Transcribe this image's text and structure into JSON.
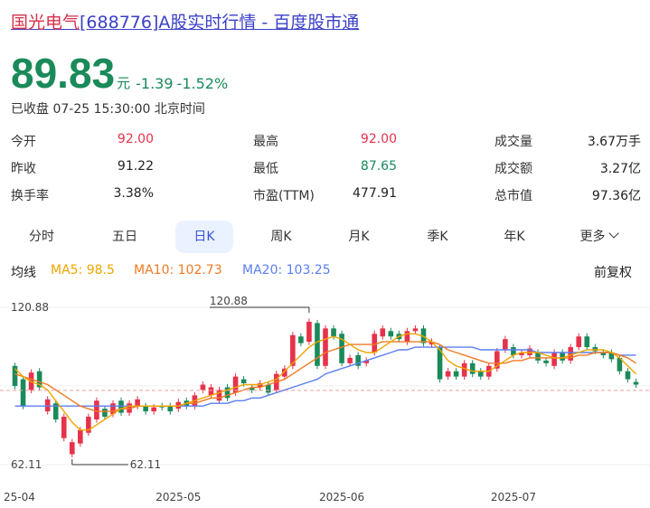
{
  "title": {
    "highlight": "国光电气",
    "rest": "[688776]A股实时行情 - 百度股市通"
  },
  "quote": {
    "price": "89.83",
    "unit": "元",
    "change": "-1.39",
    "change_pct": "-1.52%"
  },
  "status": "已收盘 07-25 15:30:00 北京时间",
  "colors": {
    "up": "#e6324b",
    "down": "#1a8a5a",
    "ma5": "#f0a500",
    "ma10": "#f07a22",
    "ma20": "#5b7ef0",
    "link": "#3a3fc7"
  },
  "stats": [
    {
      "label": "今开",
      "value": "92.00",
      "color": "up"
    },
    {
      "label": "最高",
      "value": "92.00",
      "color": "up"
    },
    {
      "label": "成交量",
      "value": "3.67万手",
      "color": "neutral"
    },
    {
      "label": "昨收",
      "value": "91.22",
      "color": "neutral"
    },
    {
      "label": "最低",
      "value": "87.65",
      "color": "down"
    },
    {
      "label": "成交额",
      "value": "3.27亿",
      "color": "neutral"
    },
    {
      "label": "换手率",
      "value": "3.38%",
      "color": "neutral"
    },
    {
      "label": "市盈(TTM)",
      "value": "477.91",
      "color": "neutral"
    },
    {
      "label": "总市值",
      "value": "97.36亿",
      "color": "neutral"
    }
  ],
  "tabs": [
    "分时",
    "五日",
    "日K",
    "周K",
    "月K",
    "季K",
    "年K",
    "更多"
  ],
  "active_tab": "日K",
  "legend": {
    "title": "均线",
    "ma5": "MA5: 98.5",
    "ma10": "MA10: 102.73",
    "ma20": "MA20: 103.25",
    "adjust": "前复权"
  },
  "chart_data": {
    "type": "candlestick",
    "y_top_label": "120.88",
    "y_bottom_label": "62.11",
    "ylim": [
      62.11,
      120.88
    ],
    "max_label": "120.88",
    "min_label": "62.11",
    "current_price": 89.83,
    "x_ticks": [
      "25-04",
      "2025-05",
      "2025-06",
      "2025-07"
    ],
    "x_tick_positions": [
      0,
      20,
      40,
      61
    ],
    "candles": [
      [
        99,
        91.5
      ],
      [
        94,
        84
      ],
      [
        90,
        96.5
      ],
      [
        97,
        91
      ],
      [
        82,
        86.5
      ],
      [
        85,
        79
      ],
      [
        72,
        80
      ],
      [
        66,
        70.5
      ],
      [
        70,
        75
      ],
      [
        74,
        80
      ],
      [
        79,
        86
      ],
      [
        83,
        80
      ],
      [
        81,
        85
      ],
      [
        86,
        81.5
      ],
      [
        81.5,
        85
      ],
      [
        84,
        86.5
      ],
      [
        84,
        82
      ],
      [
        82,
        83.5
      ],
      [
        84,
        83.5
      ],
      [
        84,
        82
      ],
      [
        83,
        85.5
      ],
      [
        86,
        84
      ],
      [
        84,
        88
      ],
      [
        90,
        92
      ],
      [
        88,
        91
      ],
      [
        86,
        90
      ],
      [
        91,
        87
      ],
      [
        89,
        95
      ],
      [
        94,
        92.5
      ],
      [
        91,
        90
      ],
      [
        91,
        92.5
      ],
      [
        92,
        89
      ],
      [
        90,
        96
      ],
      [
        95,
        98
      ],
      [
        99,
        110.5
      ],
      [
        110,
        107.5
      ],
      [
        108,
        115.5
      ],
      [
        115,
        99
      ],
      [
        99,
        113
      ],
      [
        113,
        110
      ],
      [
        111,
        100
      ],
      [
        100,
        102
      ],
      [
        103,
        99
      ],
      [
        100,
        101
      ],
      [
        104,
        111
      ],
      [
        110,
        113
      ],
      [
        112,
        110
      ],
      [
        111,
        109
      ],
      [
        108,
        112
      ],
      [
        112,
        113
      ],
      [
        113,
        107.5
      ],
      [
        107,
        108
      ],
      [
        106,
        94
      ],
      [
        95,
        97
      ],
      [
        97,
        95
      ],
      [
        95,
        100
      ],
      [
        100,
        96
      ],
      [
        97,
        95
      ],
      [
        95,
        99
      ],
      [
        98,
        104.5
      ],
      [
        105,
        109
      ],
      [
        106,
        103
      ],
      [
        103,
        104
      ],
      [
        103,
        105.5
      ],
      [
        104,
        101
      ],
      [
        101,
        100
      ],
      [
        99,
        104
      ],
      [
        104,
        101
      ],
      [
        101,
        106
      ],
      [
        106,
        110
      ],
      [
        110,
        106
      ],
      [
        106,
        104.5
      ],
      [
        104,
        103
      ],
      [
        104,
        101.5
      ],
      [
        102,
        97
      ],
      [
        97,
        94
      ],
      [
        93,
        92
      ]
    ],
    "ma5": [
      98,
      95,
      93,
      92,
      90,
      86,
      82,
      78,
      75,
      75,
      77,
      79,
      81,
      83,
      84,
      84,
      84,
      84,
      84,
      84,
      84,
      85,
      86,
      87,
      88,
      89,
      90,
      91,
      92,
      92,
      92,
      93,
      94,
      97,
      100,
      103,
      106,
      108,
      109,
      110,
      109,
      107,
      105,
      104,
      104,
      106,
      108,
      110,
      111,
      111,
      110,
      108,
      105,
      101,
      99,
      98,
      97,
      97,
      97,
      99,
      101,
      103,
      104,
      104,
      104,
      103,
      102,
      102,
      103,
      104,
      105,
      105,
      105,
      104,
      102,
      99,
      96
    ],
    "ma10": [
      96,
      95,
      94,
      93,
      92,
      90,
      88,
      86,
      84,
      83,
      82,
      82,
      82,
      83,
      83,
      84,
      84,
      84,
      84,
      84,
      84,
      85,
      85,
      86,
      87,
      87,
      88,
      89,
      90,
      91,
      91,
      92,
      93,
      94,
      96,
      98,
      100,
      102,
      104,
      105,
      106,
      107,
      107,
      107,
      107,
      108,
      108,
      108,
      108,
      108,
      108,
      108,
      107,
      105,
      104,
      103,
      102,
      101,
      100,
      100,
      100,
      101,
      101,
      102,
      102,
      102,
      102,
      102,
      102,
      103,
      103,
      104,
      104,
      104,
      103,
      102,
      100
    ],
    "ma20": [
      84,
      84,
      84,
      84,
      84,
      84,
      84,
      84,
      84,
      84,
      84,
      84,
      84,
      84,
      84,
      84,
      84,
      84,
      84,
      84,
      84,
      84,
      84,
      84,
      85,
      85,
      85,
      86,
      86,
      87,
      87,
      88,
      89,
      90,
      91,
      92,
      93,
      94,
      96,
      97,
      98,
      99,
      100,
      101,
      102,
      103,
      104,
      105,
      105,
      106,
      106,
      106,
      106,
      106,
      106,
      106,
      106,
      105,
      105,
      105,
      105,
      105,
      105,
      105,
      104,
      104,
      104,
      104,
      104,
      104,
      104,
      104,
      104,
      104,
      103,
      103,
      103
    ]
  }
}
